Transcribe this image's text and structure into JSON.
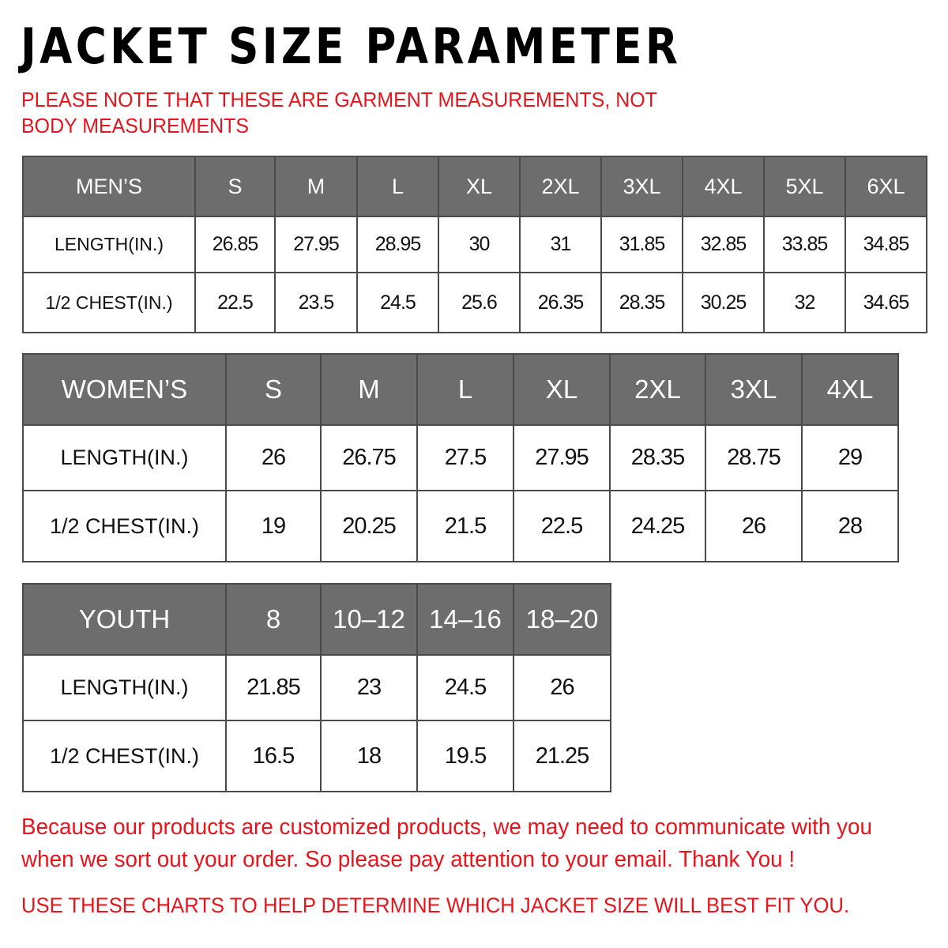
{
  "title": "JACKET SIZE PARAMETER",
  "note": "PLEASE NOTE THAT THESE ARE GARMENT MEASUREMENTS, NOT BODY MEASUREMENTS",
  "tables": {
    "men": {
      "header": [
        "MEN’S",
        "S",
        "M",
        "L",
        "XL",
        "2XL",
        "3XL",
        "4XL",
        "5XL",
        "6XL"
      ],
      "rows": [
        [
          "LENGTH(IN.)",
          "26.85",
          "27.95",
          "28.95",
          "30",
          "31",
          "31.85",
          "32.85",
          "33.85",
          "34.85"
        ],
        [
          "1/2 CHEST(IN.)",
          "22.5",
          "23.5",
          "24.5",
          "25.6",
          "26.35",
          "28.35",
          "30.25",
          "32",
          "34.65"
        ]
      ]
    },
    "women": {
      "header": [
        "WOMEN’S",
        "S",
        "M",
        "L",
        "XL",
        "2XL",
        "3XL",
        "4XL"
      ],
      "rows": [
        [
          "LENGTH(IN.)",
          "26",
          "26.75",
          "27.5",
          "27.95",
          "28.35",
          "28.75",
          "29"
        ],
        [
          "1/2 CHEST(IN.)",
          "19",
          "20.25",
          "21.5",
          "22.5",
          "24.25",
          "26",
          "28"
        ]
      ]
    },
    "youth": {
      "header": [
        "YOUTH",
        "8",
        "10–12",
        "14–16",
        "18–20"
      ],
      "rows": [
        [
          "LENGTH(IN.)",
          "21.85",
          "23",
          "24.5",
          "26"
        ],
        [
          "1/2 CHEST(IN.)",
          "16.5",
          "18",
          "19.5",
          "21.25"
        ]
      ]
    }
  },
  "footer_message": "Because our products are customized products, we may need to communicate with you when we sort out your order. So please pay attention to your email. Thank You !",
  "footer_instruction": "USE THESE CHARTS TO HELP DETERMINE WHICH JACKET SIZE WILL BEST FIT YOU.",
  "colors": {
    "header_bg": "#6d6d6d",
    "accent_red": "#e8141b",
    "border": "#4a4a4a"
  }
}
